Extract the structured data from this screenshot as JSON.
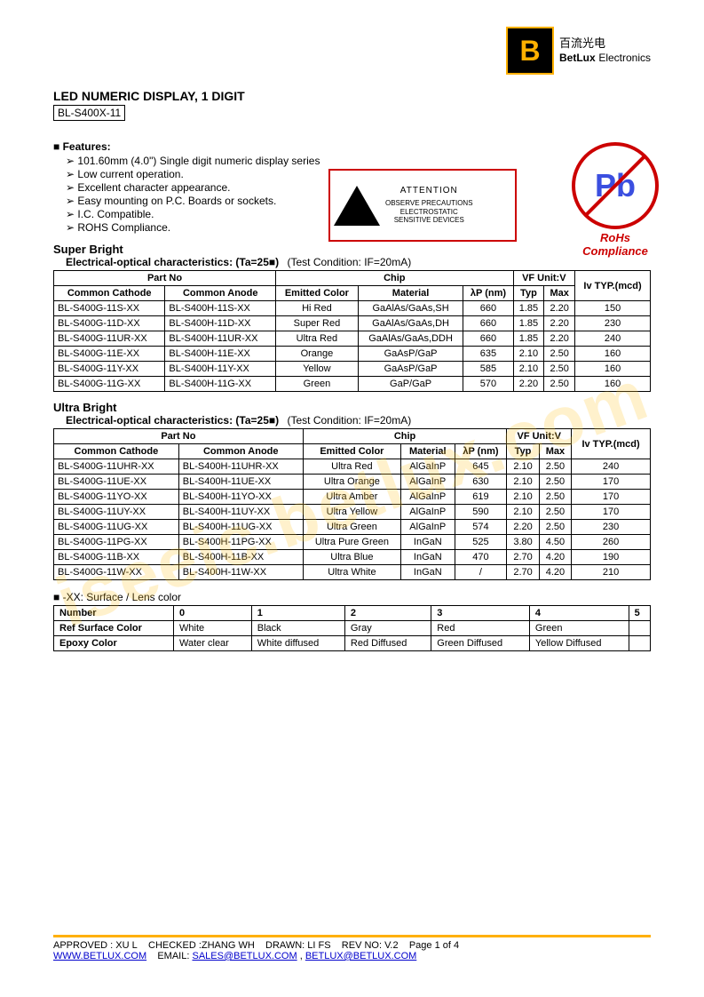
{
  "logo": {
    "letter": "B",
    "cn": "百流光电",
    "en_bold": "BetLux",
    "en_rest": "Electronics"
  },
  "watermark": "iseeic.betlux.com",
  "title": "LED NUMERIC DISPLAY, 1 DIGIT",
  "model": "BL-S400X-11",
  "features_head": "Features:",
  "features": [
    "101.60mm (4.0\") Single digit numeric display series",
    "Low current operation.",
    "Excellent character appearance.",
    "Easy mounting on P.C. Boards or sockets.",
    "I.C. Compatible.",
    "ROHS Compliance."
  ],
  "attention": {
    "title": "ATTENTION",
    "line1": "OBSERVE PRECAUTIONS",
    "line2": "ELECTROSTATIC",
    "line3": "SENSITIVE DEVICES"
  },
  "rohs": {
    "symbol": "Pb",
    "label": "RoHs Compliance"
  },
  "super_bright": {
    "title": "Super Bright",
    "subtitle": "Electrical-optical characteristics: (Ta=25■)",
    "condition": "(Test Condition: IF=20mA)",
    "headers": {
      "partno": "Part No",
      "cc": "Common Cathode",
      "ca": "Common Anode",
      "chip": "Chip",
      "color": "Emitted Color",
      "mat": "Material",
      "wl": "λP (nm)",
      "vf": "VF Unit:V",
      "typ": "Typ",
      "max": "Max",
      "iv": "Iv TYP.(mcd)"
    },
    "rows": [
      {
        "cc": "BL-S400G-11S-XX",
        "ca": "BL-S400H-11S-XX",
        "color": "Hi Red",
        "mat": "GaAlAs/GaAs,SH",
        "wl": "660",
        "typ": "1.85",
        "max": "2.20",
        "iv": "150"
      },
      {
        "cc": "BL-S400G-11D-XX",
        "ca": "BL-S400H-11D-XX",
        "color": "Super Red",
        "mat": "GaAlAs/GaAs,DH",
        "wl": "660",
        "typ": "1.85",
        "max": "2.20",
        "iv": "230"
      },
      {
        "cc": "BL-S400G-11UR-XX",
        "ca": "BL-S400H-11UR-XX",
        "color": "Ultra Red",
        "mat": "GaAlAs/GaAs,DDH",
        "wl": "660",
        "typ": "1.85",
        "max": "2.20",
        "iv": "240"
      },
      {
        "cc": "BL-S400G-11E-XX",
        "ca": "BL-S400H-11E-XX",
        "color": "Orange",
        "mat": "GaAsP/GaP",
        "wl": "635",
        "typ": "2.10",
        "max": "2.50",
        "iv": "160"
      },
      {
        "cc": "BL-S400G-11Y-XX",
        "ca": "BL-S400H-11Y-XX",
        "color": "Yellow",
        "mat": "GaAsP/GaP",
        "wl": "585",
        "typ": "2.10",
        "max": "2.50",
        "iv": "160"
      },
      {
        "cc": "BL-S400G-11G-XX",
        "ca": "BL-S400H-11G-XX",
        "color": "Green",
        "mat": "GaP/GaP",
        "wl": "570",
        "typ": "2.20",
        "max": "2.50",
        "iv": "160"
      }
    ]
  },
  "ultra_bright": {
    "title": "Ultra Bright",
    "subtitle": "Electrical-optical characteristics: (Ta=25■)",
    "condition": "(Test Condition: IF=20mA)",
    "headers": {
      "partno": "Part No",
      "cc": "Common Cathode",
      "ca": "Common Anode",
      "chip": "Chip",
      "color": "Emitted Color",
      "mat": "Material",
      "wl": "λP (nm)",
      "vf": "VF Unit:V",
      "typ": "Typ",
      "max": "Max",
      "iv": "Iv TYP.(mcd)"
    },
    "rows": [
      {
        "cc": "BL-S400G-11UHR-XX",
        "ca": "BL-S400H-11UHR-XX",
        "color": "Ultra Red",
        "mat": "AlGaInP",
        "wl": "645",
        "typ": "2.10",
        "max": "2.50",
        "iv": "240"
      },
      {
        "cc": "BL-S400G-11UE-XX",
        "ca": "BL-S400H-11UE-XX",
        "color": "Ultra Orange",
        "mat": "AlGaInP",
        "wl": "630",
        "typ": "2.10",
        "max": "2.50",
        "iv": "170"
      },
      {
        "cc": "BL-S400G-11YO-XX",
        "ca": "BL-S400H-11YO-XX",
        "color": "Ultra Amber",
        "mat": "AlGaInP",
        "wl": "619",
        "typ": "2.10",
        "max": "2.50",
        "iv": "170"
      },
      {
        "cc": "BL-S400G-11UY-XX",
        "ca": "BL-S400H-11UY-XX",
        "color": "Ultra Yellow",
        "mat": "AlGaInP",
        "wl": "590",
        "typ": "2.10",
        "max": "2.50",
        "iv": "170"
      },
      {
        "cc": "BL-S400G-11UG-XX",
        "ca": "BL-S400H-11UG-XX",
        "color": "Ultra Green",
        "mat": "AlGaInP",
        "wl": "574",
        "typ": "2.20",
        "max": "2.50",
        "iv": "230"
      },
      {
        "cc": "BL-S400G-11PG-XX",
        "ca": "BL-S400H-11PG-XX",
        "color": "Ultra Pure Green",
        "mat": "InGaN",
        "wl": "525",
        "typ": "3.80",
        "max": "4.50",
        "iv": "260"
      },
      {
        "cc": "BL-S400G-11B-XX",
        "ca": "BL-S400H-11B-XX",
        "color": "Ultra Blue",
        "mat": "InGaN",
        "wl": "470",
        "typ": "2.70",
        "max": "4.20",
        "iv": "190"
      },
      {
        "cc": "BL-S400G-11W-XX",
        "ca": "BL-S400H-11W-XX",
        "color": "Ultra White",
        "mat": "InGaN",
        "wl": "/",
        "typ": "2.70",
        "max": "4.20",
        "iv": "210"
      }
    ]
  },
  "lens": {
    "note": "-XX: Surface / Lens color",
    "headers": [
      "Number",
      "0",
      "1",
      "2",
      "3",
      "4",
      "5"
    ],
    "rows": [
      {
        "label": "Ref Surface Color",
        "vals": [
          "White",
          "Black",
          "Gray",
          "Red",
          "Green",
          ""
        ]
      },
      {
        "label": "Epoxy Color",
        "vals": [
          "Water clear",
          "White diffused",
          "Red Diffused",
          "Green Diffused",
          "Yellow Diffused",
          ""
        ]
      }
    ]
  },
  "footer": {
    "approved": "APPROVED : XU L",
    "checked": "CHECKED :ZHANG WH",
    "drawn": "DRAWN: LI FS",
    "rev": "REV NO: V.2",
    "page": "Page 1 of 4",
    "site": "WWW.BETLUX.COM",
    "email_label": "EMAIL:",
    "email1": "SALES@BETLUX.COM",
    "sep": ",",
    "email2": "BETLUX@BETLUX.COM"
  }
}
